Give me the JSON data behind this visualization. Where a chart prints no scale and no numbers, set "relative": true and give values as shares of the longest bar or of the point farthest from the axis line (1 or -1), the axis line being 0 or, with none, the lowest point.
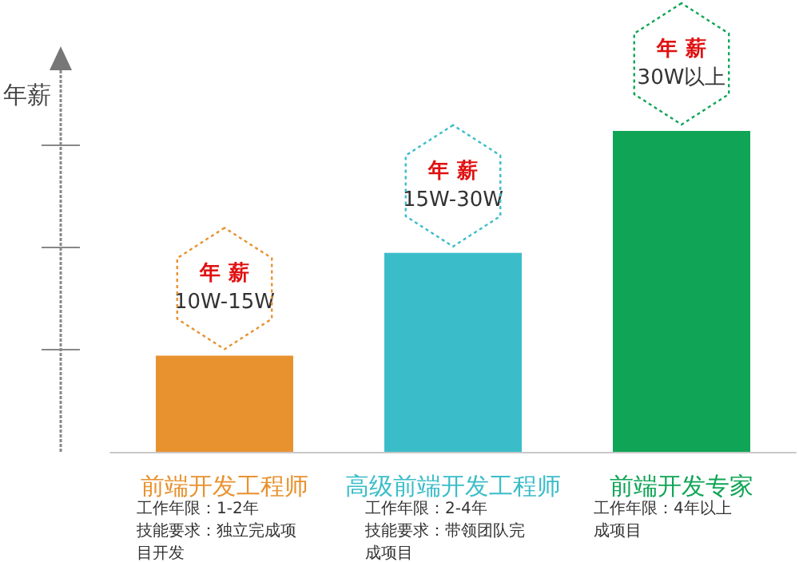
{
  "chart_data": {
    "type": "bar",
    "relative": true,
    "ylabel": "年薪",
    "categories": [
      "前端开发工程师",
      "高级前端开发工程师",
      "前端开发专家"
    ],
    "values": [
      0.3,
      0.62,
      1
    ],
    "colors": [
      "#e8922f",
      "#3bbdc9",
      "#10a556"
    ],
    "annotations": [
      {
        "text": "年 薪\n10W-15W",
        "x": "前端开发工程师",
        "y": 0.3
      },
      {
        "text": "年 薪\n15W-30W",
        "x": "高级前端开发工程师",
        "y": 0.62
      },
      {
        "text": "年 薪\n30W以上",
        "x": "前端开发专家",
        "y": 1
      },
      "工作年限：1-2年",
      "技能要求：独立完成项目开发",
      "工作年限：2-4年",
      "技能要求：带领团队完成项目",
      "工作年限：4年以上",
      "成项目"
    ]
  }
}
